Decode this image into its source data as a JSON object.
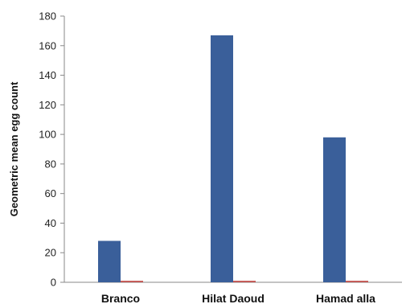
{
  "chart_data": {
    "type": "bar",
    "title": "",
    "xlabel": "",
    "ylabel": "Geometric mean egg count",
    "ylim": [
      0,
      180
    ],
    "yticks": [
      0,
      20,
      40,
      60,
      80,
      100,
      120,
      140,
      160,
      180
    ],
    "categories": [
      "Branco",
      "Hilat Daoud",
      "Hamad alla"
    ],
    "series": [
      {
        "values": [
          28,
          167,
          98
        ],
        "color": "#3a5f9a"
      },
      {
        "values": [
          1,
          1,
          1
        ],
        "color": "#c0504d"
      }
    ],
    "grid": false,
    "legend": "none"
  }
}
